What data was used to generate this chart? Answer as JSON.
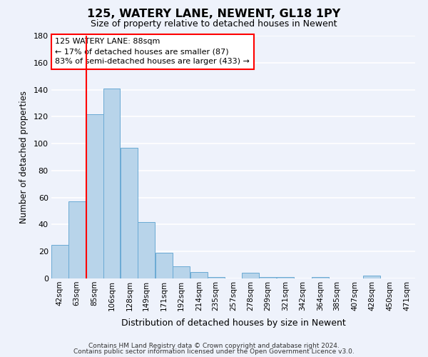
{
  "title": "125, WATERY LANE, NEWENT, GL18 1PY",
  "subtitle": "Size of property relative to detached houses in Newent",
  "xlabel": "Distribution of detached houses by size in Newent",
  "ylabel": "Number of detached properties",
  "bin_labels": [
    "42sqm",
    "63sqm",
    "85sqm",
    "106sqm",
    "128sqm",
    "149sqm",
    "171sqm",
    "192sqm",
    "214sqm",
    "235sqm",
    "257sqm",
    "278sqm",
    "299sqm",
    "321sqm",
    "342sqm",
    "364sqm",
    "385sqm",
    "407sqm",
    "428sqm",
    "450sqm",
    "471sqm"
  ],
  "bin_edges": [
    42,
    63,
    85,
    106,
    128,
    149,
    171,
    192,
    214,
    235,
    257,
    278,
    299,
    321,
    342,
    364,
    385,
    407,
    428,
    450,
    471
  ],
  "bar_heights": [
    25,
    57,
    122,
    141,
    97,
    42,
    19,
    9,
    5,
    1,
    0,
    4,
    1,
    1,
    0,
    1,
    0,
    0,
    2,
    0
  ],
  "bar_color": "#b8d4ea",
  "bar_edgecolor": "#6aaad4",
  "redline_x": 85,
  "annotation_title": "125 WATERY LANE: 88sqm",
  "annotation_line1": "← 17% of detached houses are smaller (87)",
  "annotation_line2": "83% of semi-detached houses are larger (433) →",
  "ylim": [
    0,
    180
  ],
  "yticks": [
    0,
    20,
    40,
    60,
    80,
    100,
    120,
    140,
    160,
    180
  ],
  "background_color": "#eef2fb",
  "grid_color": "#ffffff",
  "footer_line1": "Contains HM Land Registry data © Crown copyright and database right 2024.",
  "footer_line2": "Contains public sector information licensed under the Open Government Licence v3.0."
}
